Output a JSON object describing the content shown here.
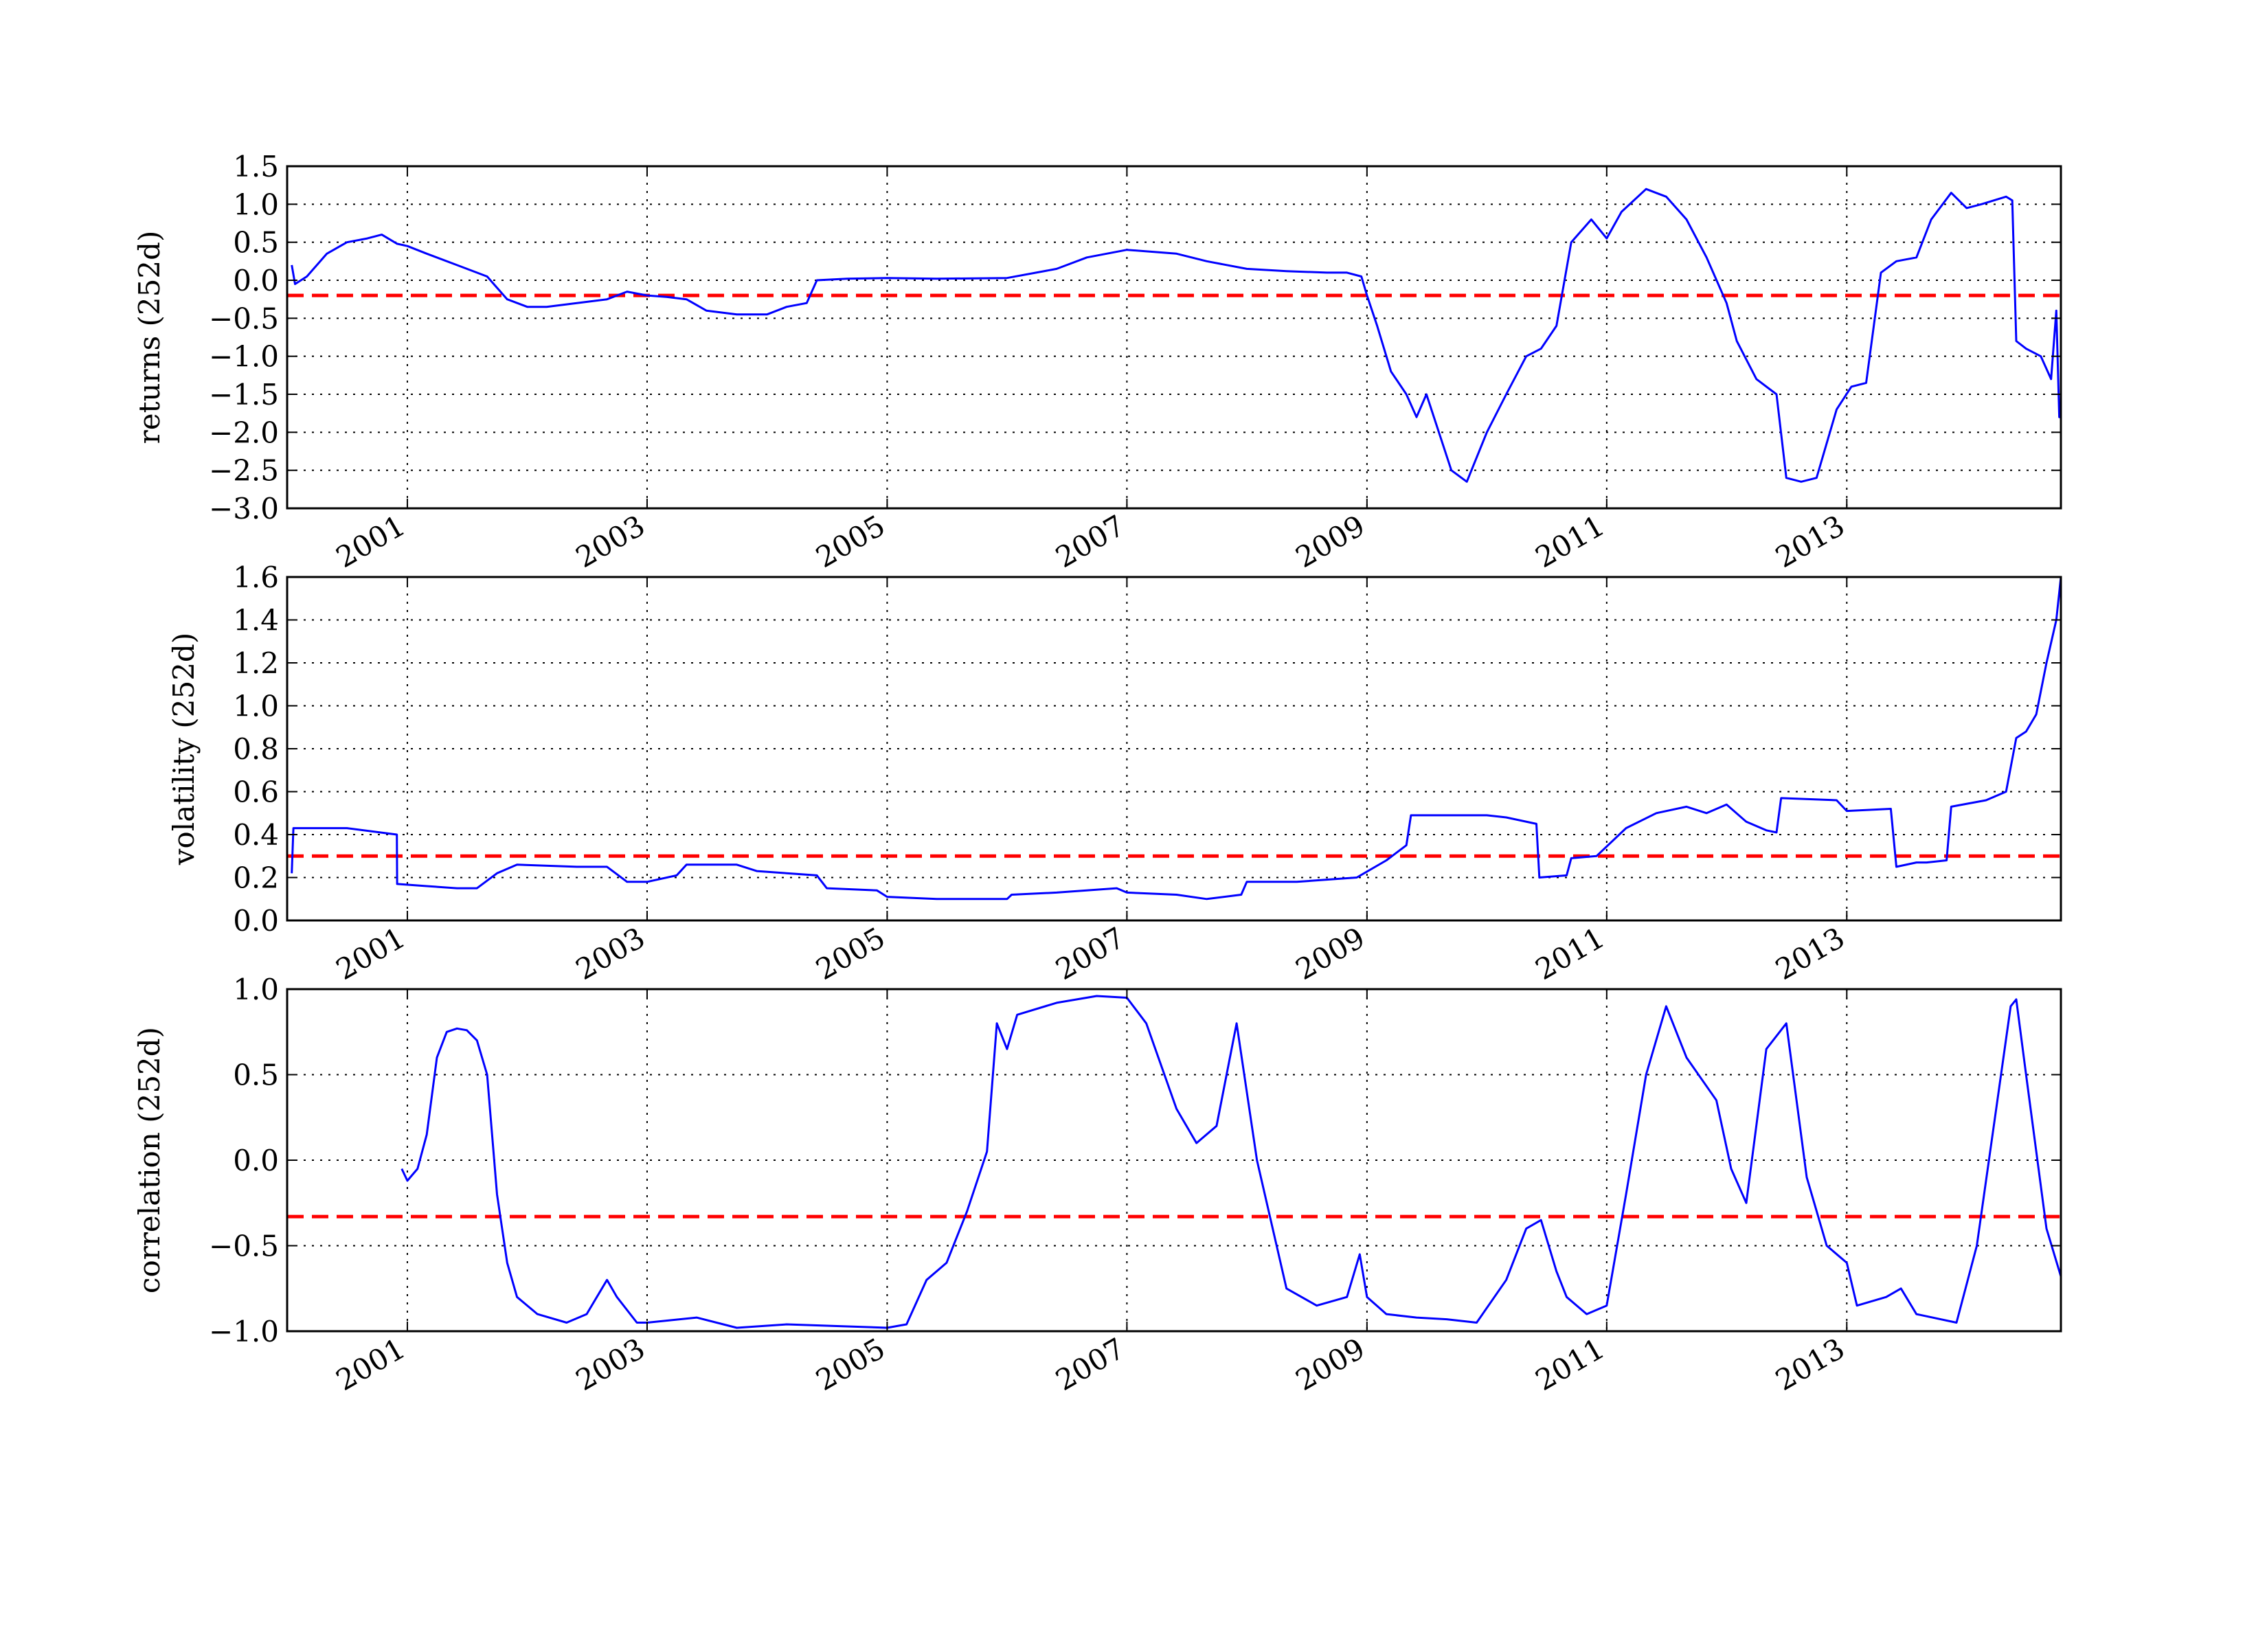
{
  "figure": {
    "background": "#ffffff",
    "grid": "dotted",
    "series_color": "#0000ff",
    "threshold_color": "#ff0000"
  },
  "chart_data": [
    {
      "type": "line",
      "ylabel": "returns (252d)",
      "xlabel": "",
      "xlim": [
        "2000-01-01",
        "2014-10-15"
      ],
      "ylim": [
        -3.0,
        1.5
      ],
      "yticks": [
        1.5,
        1.0,
        0.5,
        0.0,
        -0.5,
        -1.0,
        -1.5,
        -2.0,
        -2.5,
        -3.0
      ],
      "ytick_labels": [
        "1.5",
        "1.0",
        "0.5",
        "0.0",
        "−0.5",
        "−1.0",
        "−1.5",
        "−2.0",
        "−2.5",
        "−3.0"
      ],
      "xticks": [
        "2001",
        "2003",
        "2005",
        "2007",
        "2009",
        "2011",
        "2013"
      ],
      "grid": true,
      "threshold": -0.2,
      "series": [
        {
          "x": [
            "2000-01-15",
            "2000-01-25",
            "2000-03-01",
            "2000-05-01",
            "2000-07-01",
            "2000-09-01",
            "2000-10-15",
            "2000-12-01",
            "2001-01-01",
            "2001-03-01",
            "2001-06-01",
            "2001-09-01",
            "2001-11-01",
            "2002-01-01",
            "2002-03-01",
            "2002-06-01",
            "2002-09-01",
            "2002-11-01",
            "2003-01-01",
            "2003-03-01",
            "2003-05-01",
            "2003-07-01",
            "2003-10-01",
            "2004-01-01",
            "2004-03-01",
            "2004-05-01",
            "2004-06-01",
            "2004-09-01",
            "2005-01-01",
            "2005-06-01",
            "2006-01-01",
            "2006-06-01",
            "2006-09-01",
            "2007-01-01",
            "2007-06-01",
            "2007-09-01",
            "2008-01-01",
            "2008-05-01",
            "2008-09-01",
            "2008-11-01",
            "2008-12-15",
            "2009-01-01",
            "2009-02-01",
            "2009-03-15",
            "2009-05-01",
            "2009-06-01",
            "2009-07-01",
            "2009-09-15",
            "2009-11-01",
            "2010-01-01",
            "2010-03-01",
            "2010-05-01",
            "2010-06-15",
            "2010-08-01",
            "2010-09-15",
            "2010-11-15",
            "2011-01-01",
            "2011-02-15",
            "2011-05-01",
            "2011-07-01",
            "2011-09-01",
            "2011-11-01",
            "2012-01-01",
            "2012-02-01",
            "2012-04-01",
            "2012-06-01",
            "2012-07-01",
            "2012-08-15",
            "2012-10-01",
            "2012-12-01",
            "2013-01-15",
            "2013-03-01",
            "2013-04-15",
            "2013-06-01",
            "2013-08-01",
            "2013-09-15",
            "2013-11-15",
            "2014-01-01",
            "2014-02-15",
            "2014-05-01",
            "2014-05-20",
            "2014-06-01",
            "2014-07-01",
            "2014-08-15",
            "2014-09-15",
            "2014-10-01",
            "2014-10-10",
            "2014-10-15"
          ],
          "values": [
            0.2,
            -0.05,
            0.05,
            0.35,
            0.5,
            0.55,
            0.6,
            0.48,
            0.45,
            0.35,
            0.2,
            0.05,
            -0.25,
            -0.35,
            -0.35,
            -0.3,
            -0.25,
            -0.15,
            -0.2,
            -0.22,
            -0.25,
            -0.4,
            -0.45,
            -0.45,
            -0.35,
            -0.3,
            0.0,
            0.02,
            0.03,
            0.02,
            0.03,
            0.15,
            0.3,
            0.4,
            0.35,
            0.25,
            0.15,
            0.12,
            0.1,
            0.1,
            0.05,
            -0.2,
            -0.6,
            -1.2,
            -1.5,
            -1.8,
            -1.5,
            -2.5,
            -2.65,
            -2.0,
            -1.5,
            -1.0,
            -0.9,
            -0.6,
            0.5,
            0.8,
            0.55,
            0.9,
            1.2,
            1.1,
            0.8,
            0.3,
            -0.3,
            -0.8,
            -1.3,
            -1.5,
            -2.6,
            -2.65,
            -2.6,
            -1.7,
            -1.4,
            -1.35,
            0.1,
            0.25,
            0.3,
            0.8,
            1.15,
            0.95,
            1.0,
            1.1,
            1.05,
            -0.8,
            -0.9,
            -1.0,
            -1.3,
            -0.4,
            -1.8,
            -1.8
          ],
          "name": ""
        }
      ]
    },
    {
      "type": "line",
      "ylabel": "volatility (252d)",
      "xlabel": "",
      "xlim": [
        "2000-01-01",
        "2014-10-15"
      ],
      "ylim": [
        0.0,
        1.6
      ],
      "yticks": [
        1.6,
        1.4,
        1.2,
        1.0,
        0.8,
        0.6,
        0.4,
        0.2,
        0.0
      ],
      "ytick_labels": [
        "1.6",
        "1.4",
        "1.2",
        "1.0",
        "0.8",
        "0.6",
        "0.4",
        "0.2",
        "0.0"
      ],
      "xticks": [
        "2001",
        "2003",
        "2005",
        "2007",
        "2009",
        "2011",
        "2013"
      ],
      "grid": true,
      "threshold": 0.3,
      "series": [
        {
          "x": [
            "2000-01-15",
            "2000-01-20",
            "2000-07-01",
            "2000-11-30",
            "2000-12-01",
            "2001-03-01",
            "2001-06-01",
            "2001-08-01",
            "2001-10-01",
            "2001-12-01",
            "2002-06-01",
            "2002-09-01",
            "2002-11-01",
            "2003-01-01",
            "2003-04-01",
            "2003-05-01",
            "2003-10-01",
            "2003-12-01",
            "2004-06-01",
            "2004-07-01",
            "2004-12-01",
            "2005-01-01",
            "2005-06-01",
            "2006-01-01",
            "2006-01-15",
            "2006-06-01",
            "2006-12-01",
            "2007-01-01",
            "2007-06-01",
            "2007-09-01",
            "2007-12-15",
            "2008-01-01",
            "2008-06-01",
            "2008-12-01",
            "2009-03-01",
            "2009-05-01",
            "2009-05-15",
            "2010-01-01",
            "2010-03-01",
            "2010-06-01",
            "2010-06-10",
            "2010-09-01",
            "2010-09-15",
            "2010-12-01",
            "2011-03-01",
            "2011-06-01",
            "2011-09-01",
            "2011-11-01",
            "2012-01-01",
            "2012-03-01",
            "2012-05-01",
            "2012-06-01",
            "2012-06-15",
            "2012-12-01",
            "2013-01-01",
            "2013-05-15",
            "2013-06-01",
            "2013-08-01",
            "2013-09-01",
            "2013-11-01",
            "2013-11-15",
            "2014-03-01",
            "2014-05-01",
            "2014-06-01",
            "2014-07-01",
            "2014-08-01",
            "2014-09-01",
            "2014-10-01",
            "2014-10-15"
          ],
          "values": [
            0.22,
            0.43,
            0.43,
            0.4,
            0.17,
            0.16,
            0.15,
            0.15,
            0.22,
            0.26,
            0.25,
            0.25,
            0.18,
            0.18,
            0.21,
            0.26,
            0.26,
            0.23,
            0.21,
            0.15,
            0.14,
            0.11,
            0.1,
            0.1,
            0.12,
            0.13,
            0.15,
            0.13,
            0.12,
            0.1,
            0.12,
            0.18,
            0.18,
            0.2,
            0.28,
            0.35,
            0.49,
            0.49,
            0.48,
            0.45,
            0.2,
            0.21,
            0.29,
            0.3,
            0.43,
            0.5,
            0.53,
            0.5,
            0.54,
            0.46,
            0.42,
            0.41,
            0.57,
            0.56,
            0.51,
            0.52,
            0.25,
            0.27,
            0.27,
            0.28,
            0.53,
            0.56,
            0.6,
            0.85,
            0.88,
            0.96,
            1.2,
            1.4,
            1.6
          ],
          "name": ""
        }
      ]
    },
    {
      "type": "line",
      "ylabel": "correlation (252d)",
      "xlabel": "",
      "xlim": [
        "2000-01-01",
        "2014-10-15"
      ],
      "ylim": [
        -1.0,
        1.0
      ],
      "yticks": [
        1.0,
        0.5,
        0.0,
        -0.5,
        -1.0
      ],
      "ytick_labels": [
        "1.0",
        "0.5",
        "0.0",
        "−0.5",
        "−1.0"
      ],
      "xticks": [
        "2001",
        "2003",
        "2005",
        "2007",
        "2009",
        "2011",
        "2013"
      ],
      "grid": true,
      "threshold": -0.33,
      "series": [
        {
          "x": [
            "2000-12-15",
            "2001-01-01",
            "2001-02-01",
            "2001-03-01",
            "2001-04-01",
            "2001-05-01",
            "2001-06-01",
            "2001-07-01",
            "2001-08-01",
            "2001-09-01",
            "2001-10-01",
            "2001-11-01",
            "2001-12-01",
            "2002-02-01",
            "2002-05-01",
            "2002-07-01",
            "2002-09-01",
            "2002-10-01",
            "2002-12-01",
            "2003-01-01",
            "2003-06-01",
            "2003-10-01",
            "2004-03-01",
            "2004-08-01",
            "2005-01-01",
            "2005-03-01",
            "2005-05-01",
            "2005-07-01",
            "2005-09-01",
            "2005-11-01",
            "2005-12-01",
            "2006-01-01",
            "2006-02-01",
            "2006-06-01",
            "2006-10-01",
            "2007-01-01",
            "2007-03-01",
            "2007-06-01",
            "2007-08-01",
            "2007-10-01",
            "2007-12-01",
            "2008-02-01",
            "2008-05-01",
            "2008-08-01",
            "2008-11-01",
            "2008-12-10",
            "2009-01-01",
            "2009-03-01",
            "2009-06-01",
            "2009-09-01",
            "2009-12-01",
            "2010-03-01",
            "2010-05-01",
            "2010-06-15",
            "2010-08-01",
            "2010-09-01",
            "2010-11-01",
            "2011-01-01",
            "2011-03-01",
            "2011-05-01",
            "2011-07-01",
            "2011-09-01",
            "2011-12-01",
            "2012-01-15",
            "2012-03-01",
            "2012-05-01",
            "2012-07-01",
            "2012-09-01",
            "2012-11-01",
            "2013-01-01",
            "2013-02-01",
            "2013-05-01",
            "2013-06-15",
            "2013-08-01",
            "2013-12-01",
            "2014-02-01",
            "2014-04-01",
            "2014-05-15",
            "2014-06-01",
            "2014-07-01",
            "2014-09-01",
            "2014-10-15"
          ],
          "values": [
            -0.05,
            -0.12,
            -0.05,
            0.15,
            0.6,
            0.75,
            0.77,
            0.76,
            0.7,
            0.5,
            -0.2,
            -0.6,
            -0.8,
            -0.9,
            -0.95,
            -0.9,
            -0.7,
            -0.8,
            -0.95,
            -0.95,
            -0.92,
            -0.98,
            -0.96,
            -0.97,
            -0.98,
            -0.96,
            -0.7,
            -0.6,
            -0.3,
            0.05,
            0.8,
            0.65,
            0.85,
            0.92,
            0.96,
            0.95,
            0.8,
            0.3,
            0.1,
            0.2,
            0.8,
            0.0,
            -0.75,
            -0.85,
            -0.8,
            -0.55,
            -0.8,
            -0.9,
            -0.92,
            -0.93,
            -0.95,
            -0.7,
            -0.4,
            -0.35,
            -0.65,
            -0.8,
            -0.9,
            -0.85,
            -0.2,
            0.5,
            0.9,
            0.6,
            0.35,
            -0.05,
            -0.25,
            0.65,
            0.8,
            -0.1,
            -0.5,
            -0.6,
            -0.85,
            -0.8,
            -0.75,
            -0.9,
            -0.95,
            -0.5,
            0.3,
            0.9,
            0.94,
            0.5,
            -0.4,
            -0.68
          ],
          "name": ""
        }
      ]
    }
  ]
}
